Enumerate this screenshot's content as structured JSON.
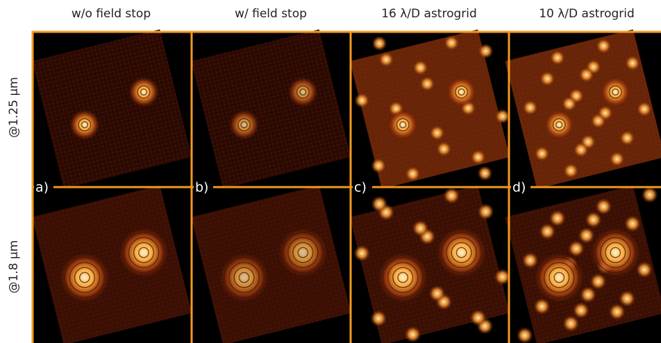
{
  "columns": [
    "w/o field stop",
    "w/ field stop",
    "16 λ/D astrogrid",
    "10 λ/D astrogrid"
  ],
  "rows": [
    "@1.25 µm",
    "@1.8 µm"
  ],
  "panel_labels": [
    "a)",
    "b)",
    "c)",
    "d)"
  ]
}
